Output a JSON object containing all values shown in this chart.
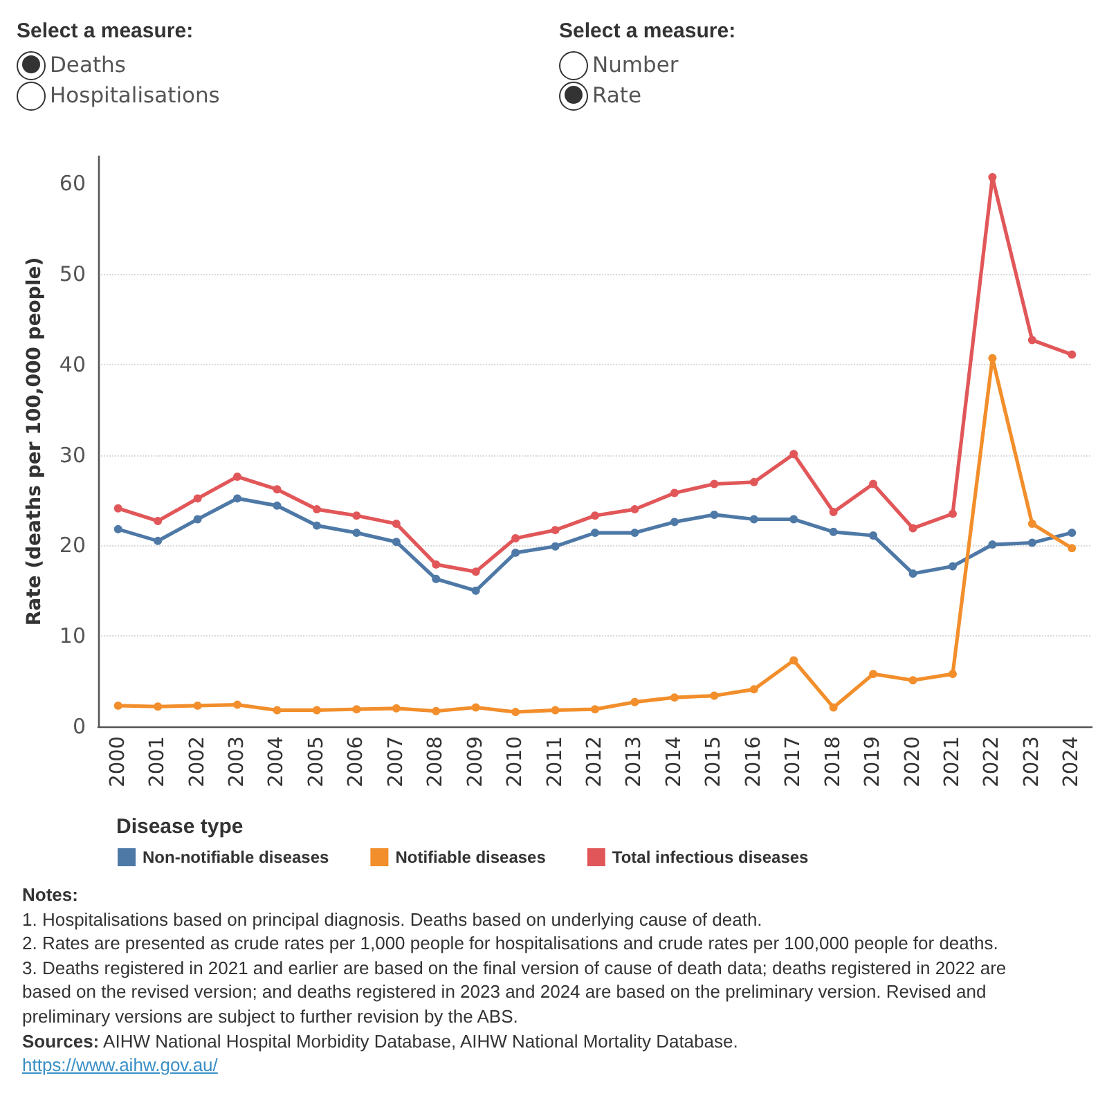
{
  "chart_data": {
    "type": "line",
    "ylabel": "Rate (deaths per 100,000 people)",
    "legend_title": "Disease type",
    "categories": [
      "2000",
      "2001",
      "2002",
      "2003",
      "2004",
      "2005",
      "2006",
      "2007",
      "2008",
      "2009",
      "2010",
      "2011",
      "2012",
      "2013",
      "2014",
      "2015",
      "2016",
      "2017",
      "2018",
      "2019",
      "2020",
      "2021",
      "2022",
      "2023",
      "2024"
    ],
    "series": [
      {
        "name": "Non-notifiable diseases",
        "color": "#4e79a7",
        "values": [
          21.8,
          20.5,
          22.9,
          25.2,
          24.4,
          22.2,
          21.4,
          20.4,
          16.3,
          15.0,
          19.2,
          19.9,
          21.4,
          21.4,
          22.6,
          23.4,
          22.9,
          22.9,
          21.5,
          21.1,
          16.9,
          17.7,
          20.1,
          20.3,
          21.4
        ]
      },
      {
        "name": "Notifiable diseases",
        "color": "#f28e2b",
        "values": [
          2.3,
          2.2,
          2.3,
          2.4,
          1.8,
          1.8,
          1.9,
          2.0,
          1.7,
          2.1,
          1.6,
          1.8,
          1.9,
          2.7,
          3.2,
          3.4,
          4.1,
          7.3,
          2.1,
          5.8,
          5.1,
          5.8,
          40.7,
          22.4,
          19.7
        ]
      },
      {
        "name": "Total infectious diseases",
        "color": "#e15759",
        "values": [
          24.1,
          22.7,
          25.2,
          27.6,
          26.2,
          24.0,
          23.3,
          22.4,
          17.9,
          17.1,
          20.8,
          21.7,
          23.3,
          24.0,
          25.8,
          26.8,
          27.0,
          30.1,
          23.7,
          26.8,
          21.9,
          23.5,
          60.7,
          42.7,
          41.1
        ]
      }
    ],
    "ylim": [
      0,
      63
    ],
    "yticks": [
      0,
      10,
      20,
      30,
      40,
      50,
      60
    ],
    "grid": "y",
    "legend": "bottom left",
    "marker": "circle",
    "line_style": "solid",
    "annotations": [
      "Select a measure:",
      "Deaths",
      "Hospitalisations",
      "Select a measure:",
      "Number",
      "Rate",
      "Notes:",
      "1. Hospitalisations based on principal diagnosis. Deaths based on underlying cause of death.",
      "2. Rates are presented as crude rates per 1,000 people for hospitalisations and crude rates per 100,000 people for deaths.",
      "3. Deaths registered in 2021 and earlier are based on the final version of cause of death data; deaths registered in 2022 are based on the revised version; and deaths registered in 2023 and 2024 are based on the preliminary version. Revised and preliminary versions are subject to further revision by the ABS.",
      "Sources: AIHW National Hospital Morbidity Database, AIHW National Mortality Database.",
      "https://www.aihw.gov.au/"
    ]
  }
}
